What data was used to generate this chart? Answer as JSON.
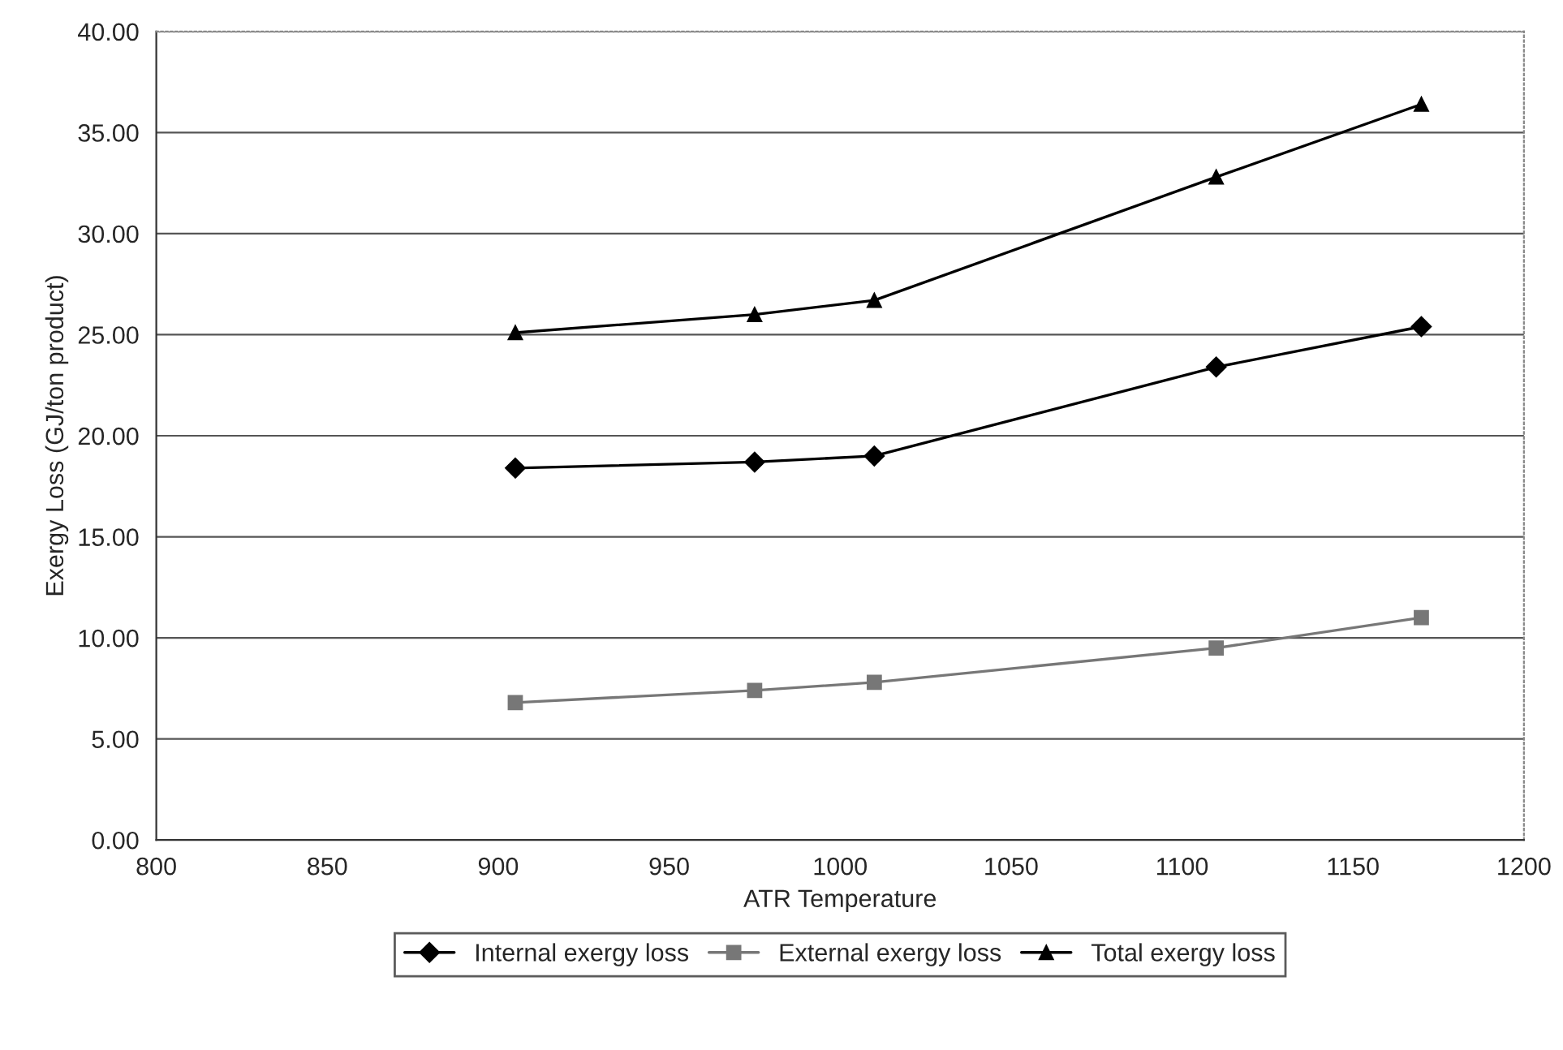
{
  "chart_data": {
    "type": "line",
    "xlabel": "ATR Temperature",
    "ylabel": "Exergy Loss (GJ/ton product)",
    "x": [
      905,
      975,
      1010,
      1110,
      1170
    ],
    "series": [
      {
        "name": "Internal exergy loss",
        "color": "#000000",
        "marker": "diamond",
        "values": [
          18.4,
          18.7,
          19.0,
          23.4,
          25.4
        ]
      },
      {
        "name": "External exergy loss",
        "color": "#777777",
        "marker": "square",
        "values": [
          6.8,
          7.4,
          7.8,
          9.5,
          11.0
        ]
      },
      {
        "name": "Total exergy loss",
        "color": "#000000",
        "marker": "triangle",
        "values": [
          25.1,
          26.0,
          26.7,
          32.8,
          36.4
        ]
      }
    ],
    "xlim": [
      800,
      1200
    ],
    "xticks": [
      800,
      850,
      900,
      950,
      1000,
      1050,
      1100,
      1150,
      1200
    ],
    "ylim": [
      0,
      40
    ],
    "yticks": [
      {
        "value": 0,
        "label": "0.00"
      },
      {
        "value": 5,
        "label": "5.00"
      },
      {
        "value": 10,
        "label": "10.00"
      },
      {
        "value": 15,
        "label": "15.00"
      },
      {
        "value": 20,
        "label": "20.00"
      },
      {
        "value": 25,
        "label": "25.00"
      },
      {
        "value": 30,
        "label": "30.00"
      },
      {
        "value": 35,
        "label": "35.00"
      },
      {
        "value": 40,
        "label": "40.00"
      }
    ],
    "grid": "y",
    "legend": "bottom",
    "line_style": "solid"
  }
}
